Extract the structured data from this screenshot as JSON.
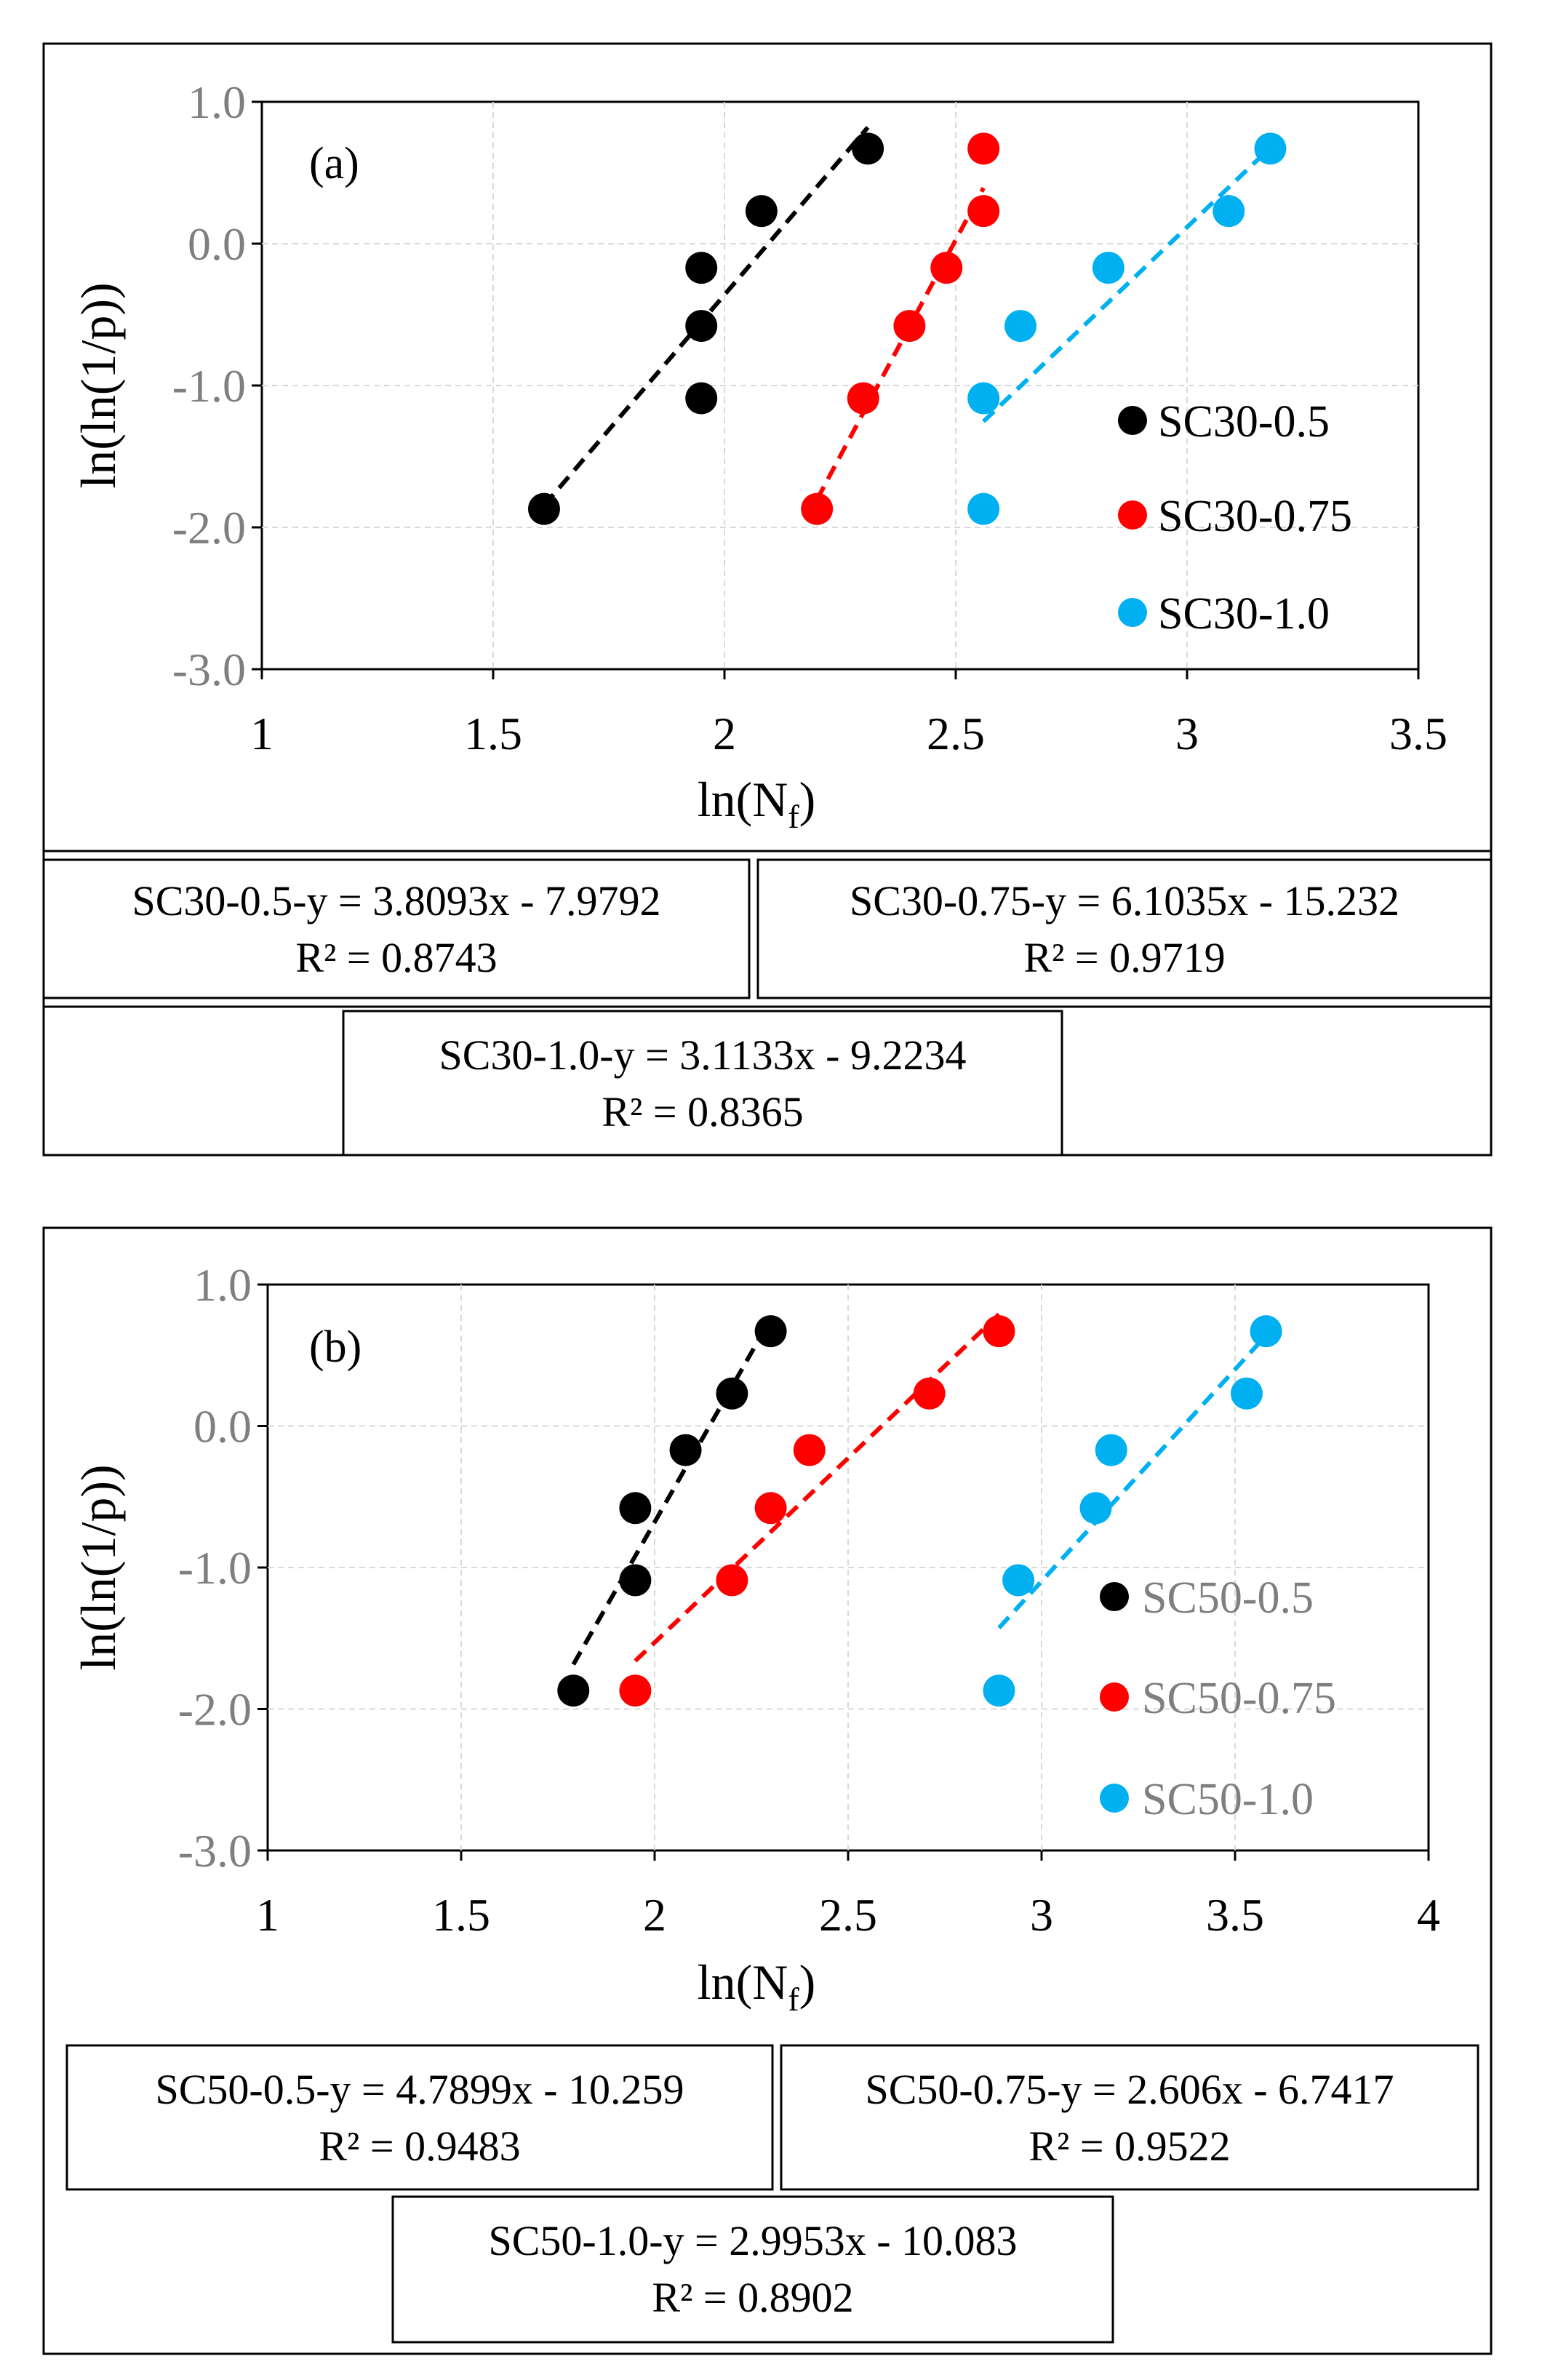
{
  "colors": {
    "s1": "#000000",
    "s2": "#ff0000",
    "s3": "#00b0f0",
    "frame": "#000000",
    "tick": "#7f7f7f",
    "grid": "#d9d9d9"
  },
  "chart_data": [
    {
      "type": "scatter",
      "panel_label": "(a)",
      "xlabel": "ln(N",
      "xlabel_sub": "f",
      "xlabel_close": ")",
      "ylabel": "ln(ln(1/p))",
      "xlim": [
        1,
        3.5
      ],
      "ylim": [
        -3,
        1
      ],
      "x_ticks": [
        "1",
        "1.5",
        "2",
        "2.5",
        "3",
        "3.5"
      ],
      "y_ticks": [
        "1.0",
        "0.0",
        "-1.0",
        "-2.0",
        "-3.0"
      ],
      "grid": true,
      "legend_position": "right",
      "series": [
        {
          "name": "SC30-0.5",
          "color": "#000000",
          "x": [
            1.61,
            1.95,
            1.95,
            1.95,
            2.08,
            2.31
          ],
          "y": [
            -1.87,
            -1.09,
            -0.58,
            -0.17,
            0.23,
            0.67
          ],
          "fit": {
            "slope": 3.8093,
            "intercept": -7.9792,
            "x_range": [
              1.61,
              2.31
            ]
          }
        },
        {
          "name": "SC30-0.75",
          "color": "#ff0000",
          "x": [
            2.2,
            2.3,
            2.4,
            2.48,
            2.56,
            2.56
          ],
          "y": [
            -1.87,
            -1.09,
            -0.58,
            -0.17,
            0.23,
            0.67
          ],
          "fit": {
            "slope": 6.1035,
            "intercept": -15.232,
            "x_range": [
              2.2,
              2.56
            ]
          }
        },
        {
          "name": "SC30-1.0",
          "color": "#00b0f0",
          "x": [
            2.56,
            2.56,
            2.64,
            2.83,
            3.09,
            3.18
          ],
          "y": [
            -1.87,
            -1.09,
            -0.58,
            -0.17,
            0.23,
            0.67
          ],
          "fit": {
            "slope": 3.1133,
            "intercept": -9.2234,
            "x_range": [
              2.56,
              3.18
            ]
          }
        }
      ],
      "equations": [
        {
          "line1": "SC30-0.5-y = 3.8093x - 7.9792",
          "line2": "R² = 0.8743"
        },
        {
          "line1": "SC30-0.75-y = 6.1035x - 15.232",
          "line2": "R² = 0.9719"
        },
        {
          "line1": "SC30-1.0-y = 3.1133x - 9.2234",
          "line2": "R² = 0.8365"
        }
      ]
    },
    {
      "type": "scatter",
      "panel_label": "(b)",
      "xlabel": "ln(N",
      "xlabel_sub": "f",
      "xlabel_close": ")",
      "ylabel": "ln(ln(1/p))",
      "xlim": [
        1,
        4
      ],
      "ylim": [
        -3,
        1
      ],
      "x_ticks": [
        "1",
        "1.5",
        "2",
        "2.5",
        "3",
        "3.5",
        "4"
      ],
      "y_ticks": [
        "1.0",
        "0.0",
        "-1.0",
        "-2.0",
        "-3.0"
      ],
      "grid": true,
      "legend_position": "right",
      "series": [
        {
          "name": "SC50-0.5",
          "color": "#000000",
          "x": [
            1.79,
            1.95,
            1.95,
            2.08,
            2.2,
            2.3
          ],
          "y": [
            -1.87,
            -1.09,
            -0.58,
            -0.17,
            0.23,
            0.67
          ],
          "fit": {
            "slope": 4.7899,
            "intercept": -10.259,
            "x_range": [
              1.79,
              2.3
            ]
          }
        },
        {
          "name": "SC50-0.75",
          "color": "#ff0000",
          "x": [
            1.95,
            2.2,
            2.3,
            2.4,
            2.71,
            2.89
          ],
          "y": [
            -1.87,
            -1.09,
            -0.58,
            -0.17,
            0.23,
            0.67
          ],
          "fit": {
            "slope": 2.606,
            "intercept": -6.7417,
            "x_range": [
              1.95,
              2.89
            ]
          }
        },
        {
          "name": "SC50-1.0",
          "color": "#00b0f0",
          "x": [
            2.89,
            2.94,
            3.14,
            3.18,
            3.53,
            3.58
          ],
          "y": [
            -1.87,
            -1.09,
            -0.58,
            -0.17,
            0.23,
            0.67
          ],
          "fit": {
            "slope": 2.9953,
            "intercept": -10.083,
            "x_range": [
              2.89,
              3.58
            ]
          }
        }
      ],
      "equations": [
        {
          "line1": "SC50-0.5-y = 4.7899x - 10.259",
          "line2": "R² = 0.9483"
        },
        {
          "line1": "SC50-0.75-y = 2.606x - 6.7417",
          "line2": "R² = 0.9522"
        },
        {
          "line1": "SC50-1.0-y = 2.9953x - 10.083",
          "line2": "R² = 0.8902"
        }
      ]
    }
  ]
}
